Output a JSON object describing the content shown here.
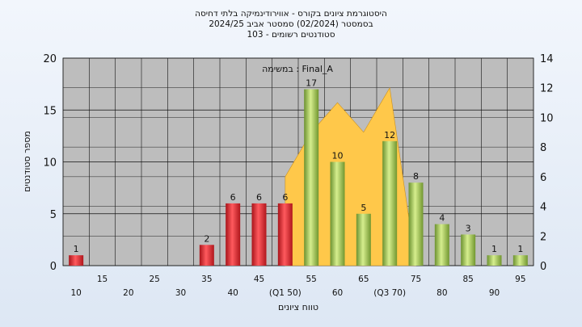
{
  "titles": [
    "היסטוגרמת ציונים בקורס - אווירודינמיקה בלתי דחיסה",
    "בסמסטר  (02/2024)  סמסטר אביב 2024/25",
    "סטודנטים רשומים - 103"
  ],
  "chart_data": {
    "type": "bar",
    "categories": [
      "10",
      "15",
      "20",
      "25",
      "30",
      "35",
      "40",
      "45",
      "50",
      "55",
      "60",
      "65",
      "70",
      "75",
      "80",
      "85",
      "90",
      "95"
    ],
    "values": [
      1,
      0,
      0,
      0,
      0,
      2,
      6,
      6,
      6,
      17,
      10,
      5,
      12,
      8,
      4,
      3,
      1,
      1
    ],
    "data_labels": [
      "1",
      "",
      "",
      "",
      "",
      "2",
      "6",
      "6",
      "6",
      "17",
      "10",
      "5",
      "12",
      "8",
      "4",
      "3",
      "1",
      "1"
    ],
    "bar_colors": [
      "red",
      "none",
      "none",
      "none",
      "none",
      "red",
      "red",
      "red",
      "red",
      "green",
      "green",
      "green",
      "green",
      "green",
      "green",
      "green",
      "green",
      "green"
    ],
    "x_tick_labels_row1": [
      "",
      "15",
      "",
      "25",
      "",
      "35",
      "",
      "45",
      "",
      "55",
      "",
      "65",
      "",
      "75",
      "",
      "85",
      "",
      "95"
    ],
    "x_tick_labels_row2": [
      "10",
      "",
      "20",
      "",
      "30",
      "",
      "40",
      "",
      "(Q1 50)",
      "",
      "60",
      "",
      "(Q3 70)",
      "",
      "80",
      "",
      "90",
      ""
    ],
    "xlabel": "טווח ציונים",
    "ylabel": "מספר סטודנטים",
    "ylim": [
      0,
      20
    ],
    "y_ticks": [
      "0",
      "5",
      "10",
      "15",
      "20"
    ],
    "y2lim": [
      0,
      14
    ],
    "y2_ticks": [
      "0",
      "2",
      "4",
      "6",
      "8",
      "10",
      "12",
      "14"
    ],
    "annotation": "במשימה : Final_A",
    "area_series": {
      "x": [
        "50",
        "55",
        "60",
        "65",
        "70",
        "75"
      ],
      "values": [
        6,
        9,
        11,
        9,
        12,
        0
      ],
      "axis": "right",
      "color": "#ffc84a"
    },
    "grid": true,
    "red_color": "#e0242c",
    "green_color": "#9ec64a",
    "plot_background": "#bdbdbd"
  }
}
